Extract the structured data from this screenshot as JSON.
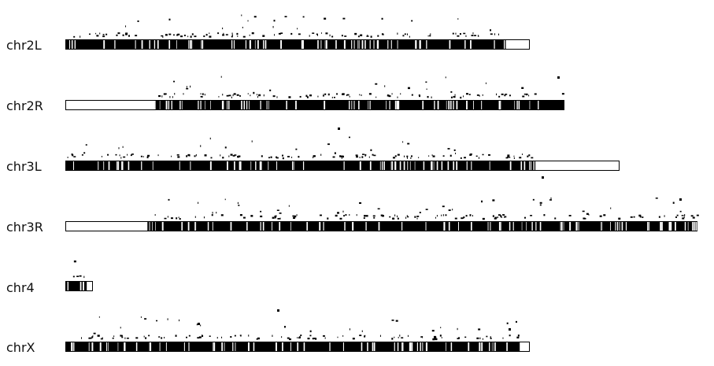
{
  "chromosomes": [
    {
      "name": "chr2L",
      "relative_length": 0.735,
      "dense_region": [
        0.0,
        0.95
      ]
    },
    {
      "name": "chr2R",
      "relative_length": 0.789,
      "dense_region": [
        0.18,
        1.0
      ]
    },
    {
      "name": "chr3L",
      "relative_length": 0.877,
      "dense_region": [
        0.0,
        0.85
      ]
    },
    {
      "name": "chr3R",
      "relative_length": 1.0,
      "dense_region": [
        0.13,
        1.0
      ]
    },
    {
      "name": "chr4",
      "relative_length": 0.043,
      "dense_region": [
        0.0,
        0.8
      ]
    },
    {
      "name": "chrX",
      "relative_length": 0.735,
      "dense_region": [
        0.0,
        0.98
      ]
    }
  ],
  "colors": {
    "bar_fill": "#000000",
    "bar_outline": "#000000",
    "background": "#ffffff"
  }
}
